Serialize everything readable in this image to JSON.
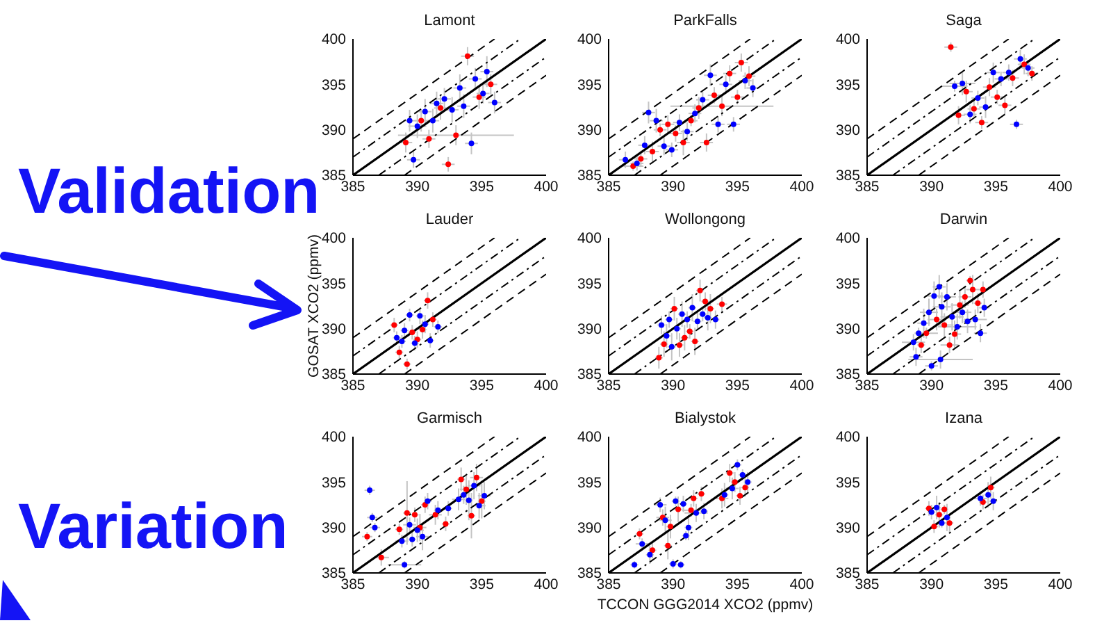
{
  "chart_data": [
    {
      "type": "scatter",
      "title": "Lamont",
      "xlim": [
        385,
        400
      ],
      "ylim": [
        385,
        400
      ],
      "xticks": [
        385,
        390,
        395,
        400
      ],
      "yticks": [
        385,
        390,
        395,
        400
      ],
      "series": [
        {
          "type": "line",
          "x": [
            385,
            400
          ],
          "values": [
            385,
            400
          ],
          "color": "#000000",
          "line_style": "solid"
        },
        {
          "type": "line",
          "x": [
            385,
            398
          ],
          "values": [
            387,
            400
          ],
          "color": "#000000",
          "line_style": "dashdot"
        },
        {
          "type": "line",
          "x": [
            387,
            400
          ],
          "values": [
            385,
            398
          ],
          "color": "#000000",
          "line_style": "dashdot"
        },
        {
          "type": "line",
          "x": [
            385,
            396
          ],
          "values": [
            389,
            400
          ],
          "color": "#000000",
          "line_style": "dashed"
        },
        {
          "type": "line",
          "x": [
            389,
            400
          ],
          "values": [
            385,
            396
          ],
          "color": "#000000",
          "line_style": "dashed"
        },
        {
          "color": "#ff0000",
          "marker": "circle",
          "x": [
            389.1,
            390.3,
            390.9,
            391.8,
            392.4,
            393.0,
            393.9,
            394.8,
            395.7
          ],
          "values": [
            388.6,
            391.0,
            389.0,
            392.4,
            386.2,
            389.4,
            398.1,
            393.6,
            395.0
          ],
          "errors": [
            1.1,
            1.2,
            1.0,
            1.3,
            0.8,
            1.1,
            1.0,
            1.3,
            1.1
          ],
          "xerrors": [
            0.5,
            0.5,
            0.5,
            0.5,
            0.5,
            4.5,
            0.5,
            0.5,
            0.5
          ]
        },
        {
          "color": "#0000ff",
          "marker": "circle",
          "x": [
            389.4,
            389.7,
            390.0,
            390.6,
            391.2,
            391.5,
            392.1,
            392.7,
            393.3,
            393.6,
            394.2,
            394.5,
            395.1,
            395.4,
            396.0
          ],
          "values": [
            391.0,
            386.7,
            390.4,
            392.0,
            391.0,
            392.9,
            393.4,
            392.2,
            394.6,
            392.6,
            388.5,
            395.6,
            394.0,
            396.4,
            393.0
          ],
          "errors": [
            1.2,
            0.9,
            1.3,
            1.4,
            1.3,
            1.3,
            1.2,
            1.4,
            1.5,
            1.3,
            1.2,
            1.2,
            1.1,
            1.7,
            1.2
          ],
          "xerrors": [
            0.5,
            0.5,
            0.7,
            0.5,
            0.5,
            0.5,
            0.5,
            0.5,
            0.5,
            0.5,
            0.5,
            0.5,
            0.5,
            0.5,
            0.5
          ]
        }
      ]
    },
    {
      "type": "scatter",
      "title": "ParkFalls",
      "xlim": [
        385,
        400
      ],
      "ylim": [
        385,
        400
      ],
      "xticks": [
        385,
        390,
        395,
        400
      ],
      "yticks": [
        385,
        390,
        395,
        400
      ],
      "series": [
        {
          "type": "line",
          "x": [
            385,
            400
          ],
          "values": [
            385,
            400
          ],
          "color": "#000000",
          "line_style": "solid"
        },
        {
          "type": "line",
          "x": [
            385,
            398
          ],
          "values": [
            387,
            400
          ],
          "color": "#000000",
          "line_style": "dashdot"
        },
        {
          "type": "line",
          "x": [
            387,
            400
          ],
          "values": [
            385,
            398
          ],
          "color": "#000000",
          "line_style": "dashdot"
        },
        {
          "type": "line",
          "x": [
            385,
            396
          ],
          "values": [
            389,
            400
          ],
          "color": "#000000",
          "line_style": "dashed"
        },
        {
          "type": "line",
          "x": [
            389,
            400
          ],
          "values": [
            385,
            396
          ],
          "color": "#000000",
          "line_style": "dashed"
        },
        {
          "color": "#ff0000",
          "marker": "circle",
          "x": [
            386.9,
            387.5,
            388.4,
            389.0,
            389.6,
            390.2,
            390.8,
            391.4,
            392.0,
            392.6,
            393.2,
            393.8,
            394.4,
            395.0,
            395.3,
            395.9
          ],
          "values": [
            386.0,
            386.8,
            387.6,
            390.0,
            390.6,
            389.6,
            388.6,
            391.0,
            392.4,
            388.6,
            393.8,
            392.6,
            396.2,
            393.6,
            397.4,
            395.9
          ],
          "errors": [
            0.5,
            0.9,
            1.1,
            0.7,
            1.0,
            0.9,
            1.4,
            0.6,
            1.2,
            1.0,
            0.9,
            1.1,
            0.9,
            0.8,
            1.0,
            1.1
          ],
          "xerrors": [
            0.8,
            0.5,
            0.5,
            0.5,
            0.5,
            0.5,
            0.5,
            0.5,
            0.5,
            0.5,
            0.5,
            4.0,
            0.5,
            0.5,
            0.5,
            0.5
          ]
        },
        {
          "color": "#0000ff",
          "marker": "circle",
          "x": [
            386.3,
            387.2,
            387.8,
            388.1,
            388.7,
            389.3,
            389.9,
            390.5,
            391.1,
            391.7,
            392.3,
            392.9,
            393.5,
            394.1,
            394.7,
            395.6,
            396.2
          ],
          "values": [
            386.7,
            386.3,
            388.3,
            391.9,
            391.0,
            388.2,
            387.8,
            390.8,
            389.8,
            391.8,
            393.3,
            396.0,
            390.6,
            395.0,
            390.6,
            395.4,
            394.6
          ],
          "errors": [
            0.9,
            0.8,
            1.0,
            1.2,
            1.3,
            1.0,
            0.8,
            0.9,
            1.0,
            1.0,
            1.1,
            1.2,
            0.9,
            1.0,
            0.8,
            0.9,
            1.0
          ],
          "xerrors": [
            0.5,
            0.5,
            0.5,
            0.5,
            0.5,
            0.5,
            0.5,
            0.5,
            0.5,
            0.5,
            0.5,
            0.5,
            0.5,
            0.5,
            0.5,
            0.5,
            0.5
          ]
        }
      ]
    },
    {
      "type": "scatter",
      "title": "Saga",
      "xlim": [
        385,
        400
      ],
      "ylim": [
        385,
        400
      ],
      "xticks": [
        385,
        390,
        395,
        400
      ],
      "yticks": [
        385,
        390,
        395,
        400
      ],
      "series": [
        {
          "type": "line",
          "x": [
            385,
            400
          ],
          "values": [
            385,
            400
          ],
          "color": "#000000",
          "line_style": "solid"
        },
        {
          "type": "line",
          "x": [
            385,
            398
          ],
          "values": [
            387,
            400
          ],
          "color": "#000000",
          "line_style": "dashdot"
        },
        {
          "type": "line",
          "x": [
            387,
            400
          ],
          "values": [
            385,
            398
          ],
          "color": "#000000",
          "line_style": "dashdot"
        },
        {
          "type": "line",
          "x": [
            385,
            396
          ],
          "values": [
            389,
            400
          ],
          "color": "#000000",
          "line_style": "dashed"
        },
        {
          "type": "line",
          "x": [
            389,
            400
          ],
          "values": [
            385,
            396
          ],
          "color": "#000000",
          "line_style": "dashed"
        },
        {
          "color": "#ff0000",
          "marker": "circle",
          "x": [
            391.5,
            392.1,
            392.7,
            393.3,
            393.9,
            394.5,
            395.1,
            395.7,
            396.3,
            397.2,
            397.8
          ],
          "values": [
            399.1,
            391.6,
            394.2,
            392.3,
            390.8,
            394.7,
            393.6,
            392.7,
            395.7,
            397.2,
            396.2
          ],
          "errors": [
            0.5,
            1.0,
            1.2,
            0.9,
            0.7,
            1.0,
            0.8,
            1.0,
            0.9,
            1.1,
            0.8
          ],
          "xerrors": [
            0.5,
            0.5,
            0.5,
            0.5,
            0.5,
            0.5,
            0.5,
            0.5,
            0.5,
            0.5,
            0.5
          ]
        },
        {
          "color": "#0000ff",
          "marker": "circle",
          "x": [
            391.8,
            392.4,
            393.0,
            393.6,
            394.2,
            394.8,
            395.4,
            396.0,
            396.6,
            396.9,
            397.5
          ],
          "values": [
            394.8,
            395.1,
            391.7,
            393.5,
            392.5,
            396.3,
            395.6,
            396.3,
            390.6,
            397.8,
            396.8
          ],
          "errors": [
            0.6,
            1.3,
            1.0,
            0.8,
            1.2,
            1.1,
            0.8,
            0.9,
            0.5,
            1.0,
            0.9
          ],
          "xerrors": [
            1.0,
            1.0,
            0.5,
            0.5,
            0.5,
            0.5,
            0.5,
            0.5,
            0.5,
            0.5,
            0.5
          ]
        }
      ]
    },
    {
      "type": "scatter",
      "title": "Lauder",
      "ylabel": "GOSAT XCO2 (ppmv)",
      "xlim": [
        385,
        400
      ],
      "ylim": [
        385,
        400
      ],
      "xticks": [
        385,
        390,
        395,
        400
      ],
      "yticks": [
        385,
        390,
        395,
        400
      ],
      "series": [
        {
          "type": "line",
          "x": [
            385,
            400
          ],
          "values": [
            385,
            400
          ],
          "color": "#000000",
          "line_style": "solid"
        },
        {
          "type": "line",
          "x": [
            385,
            398
          ],
          "values": [
            387,
            400
          ],
          "color": "#000000",
          "line_style": "dashdot"
        },
        {
          "type": "line",
          "x": [
            387,
            400
          ],
          "values": [
            385,
            398
          ],
          "color": "#000000",
          "line_style": "dashdot"
        },
        {
          "type": "line",
          "x": [
            385,
            396
          ],
          "values": [
            389,
            400
          ],
          "color": "#000000",
          "line_style": "dashed"
        },
        {
          "type": "line",
          "x": [
            389,
            400
          ],
          "values": [
            385,
            396
          ],
          "color": "#000000",
          "line_style": "dashed"
        },
        {
          "color": "#ff0000",
          "marker": "circle",
          "x": [
            388.2,
            388.6,
            389.2,
            389.6,
            390.0,
            390.4,
            390.8,
            391.2
          ],
          "values": [
            390.4,
            387.4,
            386.1,
            389.6,
            388.8,
            389.9,
            393.1,
            391.0
          ],
          "errors": [
            0.8,
            0.7,
            0.6,
            0.8,
            0.9,
            1.0,
            0.9,
            0.8
          ],
          "xerrors": [
            0.3,
            0.3,
            0.3,
            0.3,
            0.3,
            0.3,
            0.3,
            0.3
          ]
        },
        {
          "color": "#0000ff",
          "marker": "circle",
          "x": [
            388.4,
            388.8,
            389.0,
            389.4,
            389.8,
            390.2,
            390.6,
            391.0,
            391.6
          ],
          "values": [
            389.0,
            388.6,
            389.8,
            391.5,
            388.4,
            391.4,
            390.5,
            388.7,
            390.2
          ],
          "errors": [
            0.7,
            0.7,
            0.8,
            0.7,
            0.8,
            0.9,
            1.0,
            0.8,
            0.7
          ],
          "xerrors": [
            0.3,
            0.3,
            0.3,
            0.3,
            0.3,
            0.3,
            0.3,
            0.3,
            0.3
          ]
        }
      ]
    },
    {
      "type": "scatter",
      "title": "Wollongong",
      "xlim": [
        385,
        400
      ],
      "ylim": [
        385,
        400
      ],
      "xticks": [
        385,
        390,
        395,
        400
      ],
      "yticks": [
        385,
        390,
        395,
        400
      ],
      "series": [
        {
          "type": "line",
          "x": [
            385,
            400
          ],
          "values": [
            385,
            400
          ],
          "color": "#000000",
          "line_style": "solid"
        },
        {
          "type": "line",
          "x": [
            385,
            398
          ],
          "values": [
            387,
            400
          ],
          "color": "#000000",
          "line_style": "dashdot"
        },
        {
          "type": "line",
          "x": [
            387,
            400
          ],
          "values": [
            385,
            398
          ],
          "color": "#000000",
          "line_style": "dashdot"
        },
        {
          "type": "line",
          "x": [
            385,
            396
          ],
          "values": [
            389,
            400
          ],
          "color": "#000000",
          "line_style": "dashed"
        },
        {
          "type": "line",
          "x": [
            389,
            400
          ],
          "values": [
            385,
            396
          ],
          "color": "#000000",
          "line_style": "dashed"
        },
        {
          "color": "#ff0000",
          "marker": "circle",
          "x": [
            388.9,
            389.3,
            390.1,
            390.5,
            390.9,
            391.3,
            391.7,
            392.1,
            392.5,
            392.9,
            393.8
          ],
          "values": [
            386.8,
            388.3,
            392.2,
            388.2,
            389.0,
            389.7,
            388.6,
            394.2,
            393.0,
            392.2,
            392.7
          ],
          "errors": [
            1.2,
            1.4,
            1.3,
            1.3,
            1.4,
            0.8,
            1.5,
            1.2,
            1.0,
            1.6,
            0.8
          ],
          "xerrors": [
            0.3,
            0.3,
            0.3,
            0.3,
            0.3,
            0.3,
            0.3,
            0.3,
            0.3,
            0.3,
            0.4
          ]
        },
        {
          "color": "#0000ff",
          "marker": "circle",
          "x": [
            389.1,
            389.5,
            389.7,
            389.9,
            390.3,
            390.7,
            391.1,
            391.5,
            391.9,
            392.3,
            392.7,
            393.3
          ],
          "values": [
            390.4,
            389.2,
            391.0,
            388.0,
            390.0,
            391.6,
            391.0,
            392.3,
            390.8,
            391.6,
            391.2,
            391.0
          ],
          "errors": [
            1.0,
            1.3,
            0.9,
            1.5,
            1.2,
            1.4,
            0.9,
            1.5,
            1.0,
            0.8,
            1.4,
            1.0
          ],
          "xerrors": [
            0.3,
            0.3,
            0.3,
            0.3,
            0.3,
            0.3,
            0.3,
            0.3,
            0.3,
            0.3,
            0.3,
            0.3
          ]
        }
      ]
    },
    {
      "type": "scatter",
      "title": "Darwin",
      "xlim": [
        385,
        400
      ],
      "ylim": [
        385,
        400
      ],
      "xticks": [
        385,
        390,
        395,
        400
      ],
      "yticks": [
        385,
        390,
        395,
        400
      ],
      "series": [
        {
          "type": "line",
          "x": [
            385,
            400
          ],
          "values": [
            385,
            400
          ],
          "color": "#000000",
          "line_style": "solid"
        },
        {
          "type": "line",
          "x": [
            385,
            398
          ],
          "values": [
            387,
            400
          ],
          "color": "#000000",
          "line_style": "dashdot"
        },
        {
          "type": "line",
          "x": [
            387,
            400
          ],
          "values": [
            385,
            398
          ],
          "color": "#000000",
          "line_style": "dashdot"
        },
        {
          "type": "line",
          "x": [
            385,
            396
          ],
          "values": [
            389,
            400
          ],
          "color": "#000000",
          "line_style": "dashed"
        },
        {
          "type": "line",
          "x": [
            389,
            400
          ],
          "values": [
            385,
            396
          ],
          "color": "#000000",
          "line_style": "dashed"
        },
        {
          "color": "#ff0000",
          "marker": "circle",
          "x": [
            389.2,
            389.6,
            390.4,
            391.0,
            391.4,
            391.8,
            392.2,
            392.6,
            393.0,
            393.2,
            393.6,
            394.0
          ],
          "values": [
            388.2,
            389.5,
            391.0,
            390.4,
            388.2,
            389.4,
            392.6,
            393.5,
            395.3,
            394.3,
            392.8,
            394.3
          ],
          "errors": [
            0.9,
            0.6,
            1.2,
            1.3,
            0.9,
            1.5,
            1.5,
            1.2,
            0.5,
            1.6,
            1.1,
            0.9
          ],
          "xerrors": [
            0.3,
            0.9,
            0.7,
            0.7,
            0.7,
            0.5,
            0.7,
            0.5,
            0.3,
            0.5,
            0.3,
            0.3
          ]
        },
        {
          "color": "#0000ff",
          "marker": "circle",
          "x": [
            388.6,
            388.8,
            389.0,
            389.4,
            389.8,
            390.0,
            390.2,
            390.6,
            390.7,
            390.8,
            391.2,
            391.6,
            392.0,
            392.4,
            392.8,
            393.4,
            393.8,
            394.1
          ],
          "values": [
            388.5,
            386.9,
            389.5,
            390.6,
            391.8,
            385.9,
            393.6,
            394.6,
            386.6,
            392.4,
            393.5,
            391.3,
            390.2,
            391.8,
            390.8,
            391.0,
            389.5,
            392.3
          ],
          "errors": [
            0.9,
            1.0,
            0.6,
            1.6,
            1.5,
            0.5,
            1.6,
            1.3,
            1.0,
            1.6,
            1.5,
            1.5,
            1.4,
            1.2,
            1.3,
            1.1,
            1.0,
            1.0
          ],
          "xerrors": [
            0.9,
            0.5,
            0.3,
            0.5,
            0.7,
            0.5,
            0.7,
            0.5,
            2.5,
            0.7,
            0.7,
            0.9,
            1.5,
            0.7,
            0.3,
            0.9,
            0.5,
            0.4
          ]
        }
      ]
    },
    {
      "type": "scatter",
      "title": "Garmisch",
      "xlim": [
        385,
        400
      ],
      "ylim": [
        385,
        400
      ],
      "xticks": [
        385,
        390,
        395,
        400
      ],
      "yticks": [
        385,
        390,
        395,
        400
      ],
      "series": [
        {
          "type": "line",
          "x": [
            385,
            400
          ],
          "values": [
            385,
            400
          ],
          "color": "#000000",
          "line_style": "solid"
        },
        {
          "type": "line",
          "x": [
            385,
            398
          ],
          "values": [
            387,
            400
          ],
          "color": "#000000",
          "line_style": "dashdot"
        },
        {
          "type": "line",
          "x": [
            387,
            400
          ],
          "values": [
            385,
            398
          ],
          "color": "#000000",
          "line_style": "dashdot"
        },
        {
          "type": "line",
          "x": [
            385,
            396
          ],
          "values": [
            389,
            400
          ],
          "color": "#000000",
          "line_style": "dashed"
        },
        {
          "type": "line",
          "x": [
            389,
            400
          ],
          "values": [
            385,
            396
          ],
          "color": "#000000",
          "line_style": "dashed"
        },
        {
          "color": "#ff0000",
          "marker": "circle",
          "x": [
            386.1,
            387.2,
            388.6,
            389.2,
            389.8,
            390.2,
            390.6,
            391.4,
            392.2,
            393.4,
            393.8,
            394.2,
            394.6,
            395.0
          ],
          "values": [
            389.0,
            386.7,
            389.8,
            391.6,
            391.4,
            390.0,
            392.5,
            391.4,
            390.4,
            395.3,
            394.2,
            391.3,
            395.5,
            392.9
          ],
          "errors": [
            0.5,
            0.9,
            0.6,
            3.5,
            0.8,
            1.5,
            0.9,
            1.1,
            0.8,
            1.3,
            1.7,
            2.5,
            1.5,
            1.9
          ],
          "xerrors": [
            0.4,
            0.6,
            0.3,
            0.3,
            0.3,
            0.5,
            0.3,
            0.5,
            0.3,
            0.3,
            0.5,
            0.3,
            0.5,
            0.3
          ]
        },
        {
          "color": "#0000ff",
          "marker": "circle",
          "x": [
            386.3,
            386.5,
            386.7,
            388.8,
            389.0,
            389.4,
            389.6,
            390.0,
            390.4,
            390.8,
            391.6,
            392.4,
            393.2,
            393.6,
            394.0,
            394.4,
            394.8,
            395.2
          ],
          "values": [
            394.1,
            391.1,
            390.0,
            388.5,
            385.9,
            390.3,
            388.7,
            389.7,
            389.0,
            392.9,
            391.9,
            392.1,
            393.1,
            393.6,
            393.0,
            394.6,
            392.4,
            393.5
          ],
          "errors": [
            0.5,
            0.5,
            0.5,
            0.7,
            0.4,
            0.8,
            0.8,
            1.3,
            1.5,
            0.9,
            1.0,
            0.8,
            1.2,
            1.0,
            2.2,
            1.5,
            1.4,
            1.5
          ],
          "xerrors": [
            0.4,
            0.4,
            0.4,
            0.5,
            1.3,
            0.5,
            0.3,
            0.5,
            0.5,
            0.3,
            0.3,
            0.3,
            0.5,
            0.3,
            0.3,
            0.5,
            0.5,
            0.5
          ]
        }
      ]
    },
    {
      "type": "scatter",
      "title": "Bialystok",
      "xlabel": "TCCON GGG2014 XCO2 (ppmv)",
      "xlim": [
        385,
        400
      ],
      "ylim": [
        385,
        400
      ],
      "xticks": [
        385,
        390,
        395,
        400
      ],
      "yticks": [
        385,
        390,
        395,
        400
      ],
      "series": [
        {
          "type": "line",
          "x": [
            385,
            400
          ],
          "values": [
            385,
            400
          ],
          "color": "#000000",
          "line_style": "solid"
        },
        {
          "type": "line",
          "x": [
            385,
            398
          ],
          "values": [
            387,
            400
          ],
          "color": "#000000",
          "line_style": "dashdot"
        },
        {
          "type": "line",
          "x": [
            387,
            400
          ],
          "values": [
            385,
            398
          ],
          "color": "#000000",
          "line_style": "dashdot"
        },
        {
          "type": "line",
          "x": [
            385,
            396
          ],
          "values": [
            389,
            400
          ],
          "color": "#000000",
          "line_style": "dashed"
        },
        {
          "type": "line",
          "x": [
            389,
            400
          ],
          "values": [
            385,
            396
          ],
          "color": "#000000",
          "line_style": "dashed"
        },
        {
          "color": "#ff0000",
          "marker": "circle",
          "x": [
            387.4,
            388.4,
            389.2,
            389.6,
            389.8,
            390.4,
            391.4,
            391.6,
            392.2,
            393.8,
            394.4,
            394.8,
            395.2,
            395.6
          ],
          "values": [
            389.3,
            387.5,
            391.1,
            388.0,
            390.1,
            392.0,
            391.9,
            393.2,
            393.7,
            393.2,
            396.0,
            395.0,
            393.5,
            394.4
          ],
          "errors": [
            0.6,
            0.9,
            0.9,
            1.5,
            1.3,
            1.4,
            0.7,
            0.9,
            0.8,
            1.1,
            1.0,
            1.1,
            1.0,
            1.0
          ],
          "xerrors": [
            0.3,
            0.3,
            0.5,
            0.3,
            0.3,
            0.3,
            0.7,
            0.3,
            0.3,
            0.5,
            0.3,
            0.3,
            0.3,
            0.3
          ]
        },
        {
          "color": "#0000ff",
          "marker": "circle",
          "x": [
            387.0,
            387.6,
            388.2,
            389.0,
            389.4,
            390.0,
            390.2,
            390.6,
            390.8,
            391.0,
            391.2,
            391.8,
            392.4,
            394.0,
            394.6,
            395.0,
            395.4,
            395.8
          ],
          "values": [
            385.9,
            388.2,
            387.0,
            392.5,
            390.8,
            386.0,
            392.9,
            385.9,
            392.6,
            389.1,
            390.0,
            391.6,
            391.8,
            393.6,
            394.3,
            396.9,
            395.8,
            395.0
          ],
          "errors": [
            0.4,
            0.6,
            1.0,
            0.8,
            1.5,
            0.5,
            0.5,
            0.4,
            0.9,
            0.5,
            1.4,
            1.0,
            0.9,
            1.3,
            1.2,
            0.6,
            0.6,
            1.1
          ],
          "xerrors": [
            0.3,
            0.5,
            0.3,
            0.5,
            0.5,
            0.3,
            0.3,
            0.3,
            0.3,
            0.3,
            0.3,
            0.9,
            0.3,
            0.3,
            0.5,
            0.3,
            0.3,
            0.3
          ]
        }
      ]
    },
    {
      "type": "scatter",
      "title": "Izana",
      "xlim": [
        385,
        400
      ],
      "ylim": [
        385,
        400
      ],
      "xticks": [
        385,
        390,
        395,
        400
      ],
      "yticks": [
        385,
        390,
        395,
        400
      ],
      "series": [
        {
          "type": "line",
          "x": [
            385,
            400
          ],
          "values": [
            385,
            400
          ],
          "color": "#000000",
          "line_style": "solid"
        },
        {
          "type": "line",
          "x": [
            385,
            398
          ],
          "values": [
            387,
            400
          ],
          "color": "#000000",
          "line_style": "dashdot"
        },
        {
          "type": "line",
          "x": [
            387,
            400
          ],
          "values": [
            385,
            398
          ],
          "color": "#000000",
          "line_style": "dashdot"
        },
        {
          "type": "line",
          "x": [
            385,
            396
          ],
          "values": [
            389,
            400
          ],
          "color": "#000000",
          "line_style": "dashed"
        },
        {
          "type": "line",
          "x": [
            389,
            400
          ],
          "values": [
            385,
            396
          ],
          "color": "#000000",
          "line_style": "dashed"
        },
        {
          "color": "#ff0000",
          "marker": "circle",
          "x": [
            389.8,
            390.2,
            390.6,
            391.0,
            391.4,
            394.0,
            394.6
          ],
          "values": [
            392.1,
            390.1,
            391.4,
            392.0,
            390.5,
            392.8,
            394.4
          ],
          "errors": [
            0.8,
            0.7,
            1.4,
            0.5,
            1.0,
            0.8,
            1.2
          ],
          "xerrors": [
            0.3,
            0.3,
            0.3,
            0.3,
            0.3,
            0.3,
            0.3
          ]
        },
        {
          "color": "#0000ff",
          "marker": "circle",
          "x": [
            390.0,
            390.4,
            390.8,
            391.2,
            393.8,
            394.4,
            394.8
          ],
          "values": [
            391.7,
            392.2,
            390.5,
            391.1,
            393.2,
            393.6,
            392.9
          ],
          "errors": [
            0.8,
            1.3,
            0.5,
            1.5,
            0.8,
            1.4,
            1.0
          ],
          "xerrors": [
            0.3,
            0.3,
            0.3,
            0.3,
            0.5,
            0.3,
            0.3
          ]
        }
      ]
    },
    {
      "type": "other",
      "annotations": [
        "Validation",
        "Variation"
      ]
    }
  ]
}
